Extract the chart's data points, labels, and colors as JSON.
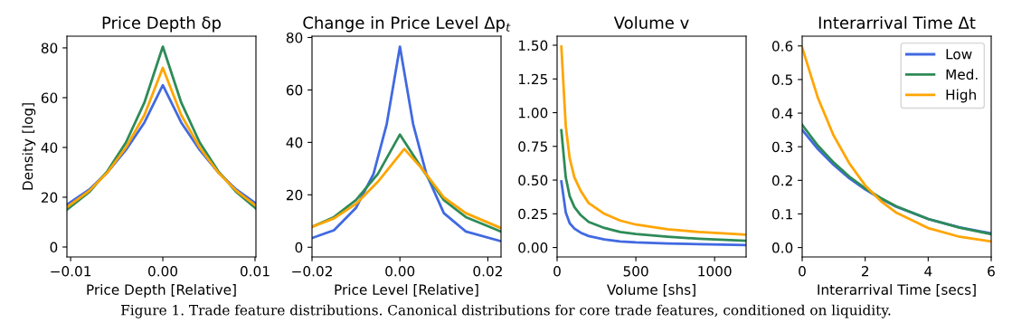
{
  "chart_data": [
    {
      "type": "line",
      "title": "Price Depth δp",
      "xlabel": "Price Depth [Relative]",
      "ylabel": "Density [log]",
      "xlim": [
        -0.0104,
        0.0101
      ],
      "xticks": [
        {
          "value": -0.01,
          "label": "−0.01"
        },
        {
          "value": 0,
          "label": "0.00"
        },
        {
          "value": 0.01,
          "label": "0.01"
        }
      ],
      "ylim": [
        -4,
        84.7
      ],
      "yticks": [
        0,
        20,
        40,
        60,
        80
      ],
      "legend": false,
      "x": [
        -0.0104,
        -0.008,
        -0.006,
        -0.004,
        -0.002,
        0,
        0.002,
        0.004,
        0.006,
        0.008,
        0.0101
      ],
      "series": [
        {
          "color": "#4169e1",
          "values": [
            17,
            23,
            30,
            39,
            50,
            65,
            50,
            39,
            30,
            23,
            17.5
          ]
        },
        {
          "color": "#2e8b57",
          "values": [
            15,
            22,
            30.5,
            42,
            58,
            80.5,
            58,
            42,
            30.5,
            22,
            15.5
          ]
        },
        {
          "color": "#ffa500",
          "values": [
            16,
            22.5,
            30,
            40,
            53,
            72,
            53,
            40,
            30,
            22.5,
            16.5
          ]
        }
      ]
    },
    {
      "type": "line",
      "title": "Change in Price Level Δp$_{t}$",
      "xlabel": "Price Level [Relative]",
      "xlim": [
        -0.02,
        0.023
      ],
      "xticks": [
        {
          "value": -0.02,
          "label": "−0.02"
        },
        {
          "value": 0,
          "label": "0.00"
        },
        {
          "value": 0.02,
          "label": "0.02"
        }
      ],
      "ylim": [
        -3.7,
        80.5
      ],
      "yticks": [
        0,
        20,
        40,
        60,
        80
      ],
      "legend": false,
      "series": [
        {
          "color": "#4169e1",
          "x": [
            -0.02,
            -0.015,
            -0.01,
            -0.006,
            -0.003,
            0,
            0.003,
            0.006,
            0.01,
            0.015,
            0.023
          ],
          "values": [
            3.5,
            6.5,
            15,
            28,
            47,
            76.5,
            47,
            28,
            13,
            6,
            2.3
          ]
        },
        {
          "color": "#2e8b57",
          "x": [
            -0.02,
            -0.015,
            -0.01,
            -0.005,
            0,
            0.005,
            0.01,
            0.015,
            0.023
          ],
          "values": [
            7.8,
            11.5,
            18,
            28,
            43,
            30,
            18,
            11.5,
            6
          ]
        },
        {
          "color": "#ffa500",
          "x": [
            -0.02,
            -0.015,
            -0.01,
            -0.005,
            0.001,
            0.005,
            0.01,
            0.015,
            0.023
          ],
          "values": [
            7.8,
            11,
            16.5,
            25,
            37.5,
            30,
            19,
            13,
            7.3
          ]
        }
      ]
    },
    {
      "type": "line",
      "title": "Volume v",
      "xlabel": "Volume [shs]",
      "xlim": [
        0,
        1200
      ],
      "xticks": [
        0,
        500,
        1000
      ],
      "ylim": [
        -0.07,
        1.567
      ],
      "yticks": [
        {
          "value": 0,
          "label": "0.00"
        },
        {
          "value": 0.25,
          "label": "0.25"
        },
        {
          "value": 0.5,
          "label": "0.50"
        },
        {
          "value": 0.75,
          "label": "0.75"
        },
        {
          "value": 1,
          "label": "1.00"
        },
        {
          "value": 1.25,
          "label": "1.25"
        },
        {
          "value": 1.5,
          "label": "1.50"
        }
      ],
      "legend": false,
      "x": [
        27,
        55,
        80,
        110,
        150,
        200,
        300,
        400,
        500,
        700,
        900,
        1200
      ],
      "series": [
        {
          "color": "#4169e1",
          "values": [
            0.49,
            0.26,
            0.18,
            0.14,
            0.11,
            0.085,
            0.06,
            0.045,
            0.038,
            0.03,
            0.025,
            0.018
          ]
        },
        {
          "color": "#2e8b57",
          "values": [
            0.87,
            0.52,
            0.38,
            0.3,
            0.24,
            0.19,
            0.145,
            0.115,
            0.1,
            0.08,
            0.065,
            0.05
          ]
        },
        {
          "color": "#ffa500",
          "values": [
            1.49,
            0.9,
            0.66,
            0.52,
            0.42,
            0.33,
            0.25,
            0.2,
            0.17,
            0.135,
            0.115,
            0.095
          ]
        }
      ]
    },
    {
      "type": "line",
      "title": "Interarrival Time Δt",
      "xlabel": "Interarrival Time [secs]",
      "xlim": [
        0,
        6
      ],
      "xticks": [
        0,
        2,
        4,
        6
      ],
      "ylim": [
        -0.028,
        0.629
      ],
      "yticks": [
        {
          "value": 0,
          "label": "0.0"
        },
        {
          "value": 0.1,
          "label": "0.1"
        },
        {
          "value": 0.2,
          "label": "0.2"
        },
        {
          "value": 0.3,
          "label": "0.3"
        },
        {
          "value": 0.4,
          "label": "0.4"
        },
        {
          "value": 0.5,
          "label": "0.5"
        },
        {
          "value": 0.6,
          "label": "0.6"
        }
      ],
      "legend": "top right",
      "x": [
        0,
        0.5,
        1,
        1.5,
        2,
        2.5,
        3,
        4,
        5,
        6
      ],
      "series": [
        {
          "name": "Low",
          "color": "#4169e1",
          "values": [
            0.35,
            0.293,
            0.246,
            0.206,
            0.173,
            0.145,
            0.121,
            0.085,
            0.06,
            0.042
          ]
        },
        {
          "name": "Med.",
          "color": "#2e8b57",
          "values": [
            0.365,
            0.303,
            0.253,
            0.211,
            0.176,
            0.147,
            0.122,
            0.085,
            0.059,
            0.04
          ]
        },
        {
          "name": "High",
          "color": "#ffa500",
          "values": [
            0.595,
            0.445,
            0.333,
            0.25,
            0.185,
            0.138,
            0.103,
            0.058,
            0.032,
            0.018
          ]
        }
      ],
      "annotations": [
        "Figure 1. Trade feature distributions. Canonical distributions for core trade features, conditioned on liquidity."
      ]
    }
  ]
}
